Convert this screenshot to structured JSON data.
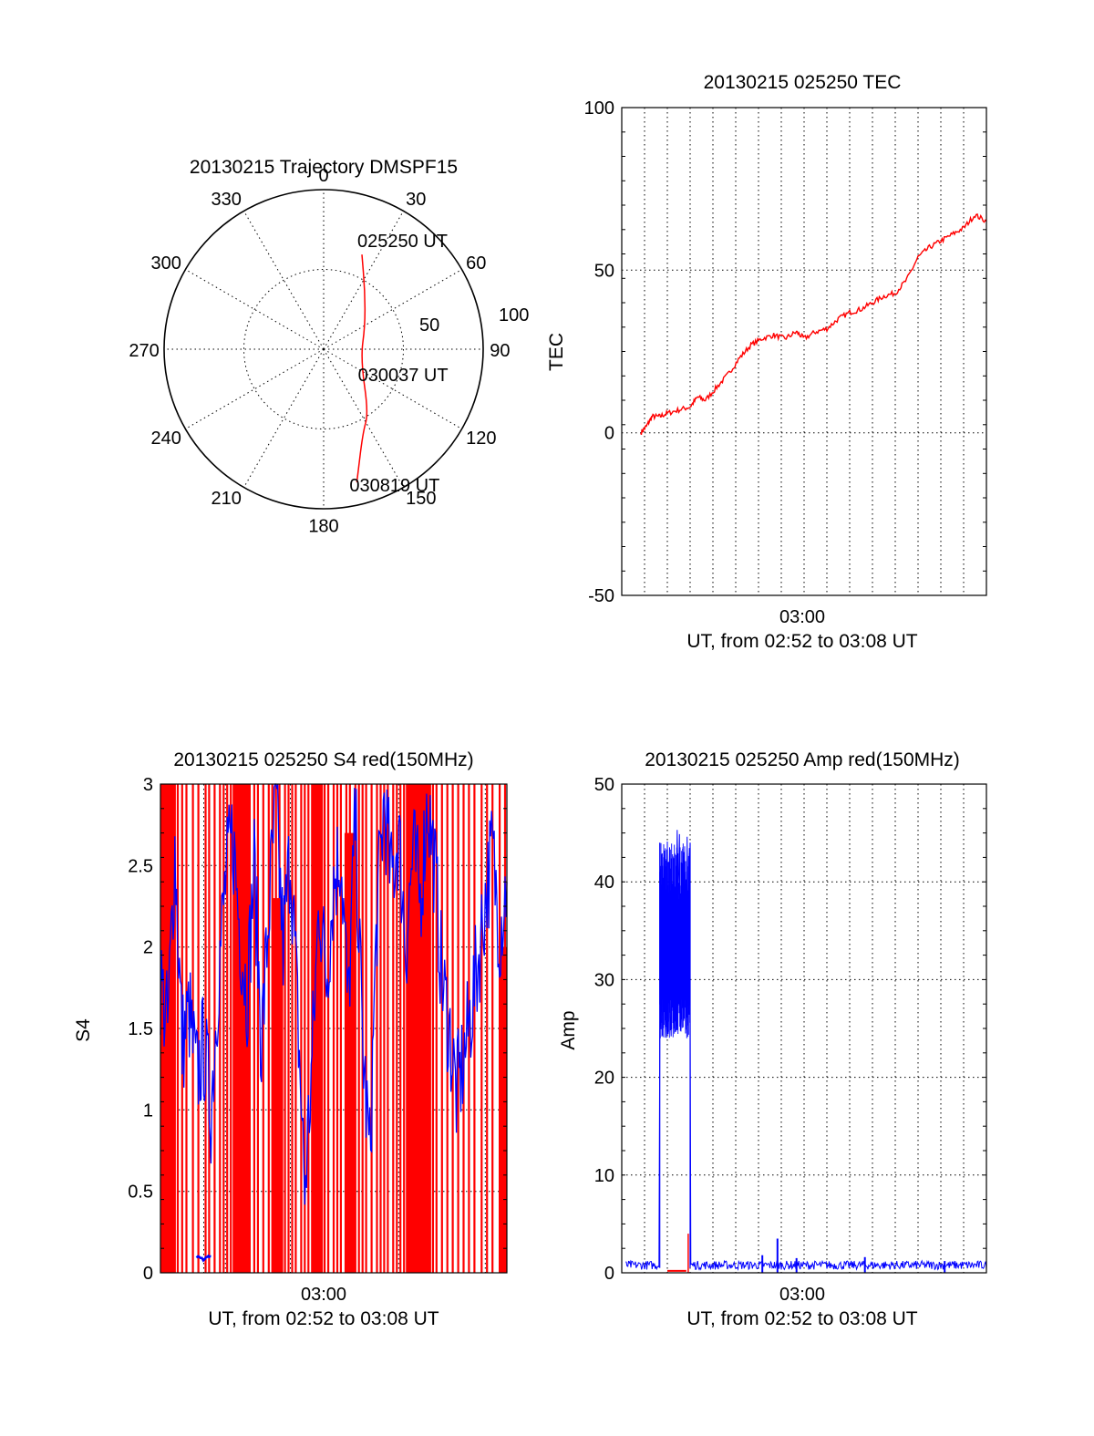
{
  "colors": {
    "red_series": "#ff0000",
    "blue_series": "#0000ff",
    "axes": "#000000"
  },
  "chart_data": [
    {
      "id": "trajectory",
      "type": "polar",
      "title": "20130215 Trajectory DMSPF15",
      "azimuth_ticks": [
        0,
        30,
        60,
        90,
        120,
        150,
        180,
        210,
        240,
        270,
        300,
        330
      ],
      "radial_ticks": [
        50,
        100
      ],
      "r_range": [
        0,
        100
      ],
      "grid": true,
      "track": {
        "color": "#ff0000",
        "points": [
          {
            "az": 22,
            "r": 64
          },
          {
            "az": 35,
            "r": 45
          },
          {
            "az": 60,
            "r": 30
          },
          {
            "az": 105,
            "r": 24
          },
          {
            "az": 145,
            "r": 49
          },
          {
            "az": 155,
            "r": 58
          },
          {
            "az": 166,
            "r": 86
          }
        ]
      },
      "annotations": [
        {
          "text": "025250 UT",
          "az": 22,
          "r": 64
        },
        {
          "text": "030037 UT",
          "az": 105,
          "r": 24
        },
        {
          "text": "030819 UT",
          "az": 166,
          "r": 86
        }
      ]
    },
    {
      "id": "tec",
      "type": "line",
      "title": "20130215 025250 TEC",
      "ylabel": "TEC",
      "xlabel": "UT, from 02:52 to 03:08 UT",
      "x_range": [
        "02:52:00",
        "03:08:00"
      ],
      "x_tick_labels": [
        {
          "time": "03:00:00",
          "label": "03:00"
        }
      ],
      "ylim": [
        -50,
        100
      ],
      "y_ticks": [
        -50,
        0,
        50,
        100
      ],
      "grid": true,
      "series": [
        {
          "color": "#ff0000",
          "points": [
            [
              "02:52:50",
              0
            ],
            [
              "02:53:05",
              2
            ],
            [
              "02:53:20",
              5
            ],
            [
              "02:53:40",
              5
            ],
            [
              "02:54:00",
              6
            ],
            [
              "02:54:30",
              7
            ],
            [
              "02:55:00",
              8
            ],
            [
              "02:55:20",
              11
            ],
            [
              "02:55:40",
              10
            ],
            [
              "02:56:10",
              14
            ],
            [
              "02:56:40",
              18
            ],
            [
              "02:57:10",
              23
            ],
            [
              "02:57:40",
              27
            ],
            [
              "02:58:10",
              29
            ],
            [
              "02:58:40",
              30
            ],
            [
              "02:59:10",
              29
            ],
            [
              "02:59:40",
              31
            ],
            [
              "03:00:00",
              29
            ],
            [
              "03:00:30",
              31
            ],
            [
              "03:01:00",
              32
            ],
            [
              "03:01:30",
              35
            ],
            [
              "03:02:00",
              37
            ],
            [
              "03:02:30",
              38
            ],
            [
              "03:03:00",
              40
            ],
            [
              "03:03:30",
              42
            ],
            [
              "03:04:00",
              43
            ],
            [
              "03:04:30",
              47
            ],
            [
              "03:05:00",
              54
            ],
            [
              "03:05:30",
              57
            ],
            [
              "03:06:00",
              59
            ],
            [
              "03:06:30",
              61
            ],
            [
              "03:07:00",
              63
            ],
            [
              "03:07:30",
              67
            ],
            [
              "03:08:00",
              65
            ]
          ]
        }
      ]
    },
    {
      "id": "s4",
      "type": "line",
      "title": "20130215 025250 S4 red(150MHz)",
      "ylabel": "S4",
      "xlabel": "UT, from 02:52 to 03:08 UT",
      "x_range": [
        "02:52:00",
        "03:08:00"
      ],
      "x_tick_labels": [
        {
          "time": "03:00:00",
          "label": "03:00"
        }
      ],
      "ylim": [
        0,
        3
      ],
      "y_ticks": [
        0,
        0.5,
        1,
        1.5,
        2,
        2.5,
        3
      ],
      "grid": true,
      "series": [
        {
          "color": "#0000ff",
          "points": [
            [
              "02:52:00",
              1.8
            ],
            [
              "02:52:20",
              1.5
            ],
            [
              "02:52:40",
              2.6
            ],
            [
              "02:53:00",
              1.4
            ],
            [
              "02:53:20",
              1.6
            ],
            [
              "02:53:40",
              1.2
            ],
            [
              "02:54:00",
              1.4
            ],
            [
              "02:54:20",
              1.0
            ],
            [
              "02:54:40",
              1.8
            ],
            [
              "02:55:00",
              2.4
            ],
            [
              "02:55:20",
              2.7
            ],
            [
              "02:55:40",
              2.1
            ],
            [
              "02:56:00",
              1.7
            ],
            [
              "02:56:20",
              2.5
            ],
            [
              "02:56:40",
              1.4
            ],
            [
              "02:57:00",
              2.2
            ],
            [
              "02:57:20",
              2.9
            ],
            [
              "02:57:40",
              2.0
            ],
            [
              "02:58:00",
              2.6
            ],
            [
              "02:58:20",
              1.6
            ],
            [
              "02:58:40",
              0.5
            ],
            [
              "02:59:00",
              1.3
            ],
            [
              "02:59:20",
              2.3
            ],
            [
              "02:59:40",
              1.8
            ],
            [
              "03:00:00",
              2.4
            ],
            [
              "03:00:20",
              2.6
            ],
            [
              "03:00:40",
              1.6
            ],
            [
              "03:01:00",
              2.8
            ],
            [
              "03:01:20",
              1.4
            ],
            [
              "03:01:40",
              0.7
            ],
            [
              "03:02:00",
              2.2
            ],
            [
              "03:02:20",
              2.9
            ],
            [
              "03:02:40",
              2.4
            ],
            [
              "03:03:00",
              2.7
            ],
            [
              "03:03:20",
              2.0
            ],
            [
              "03:03:40",
              2.6
            ],
            [
              "03:04:00",
              2.3
            ],
            [
              "03:04:20",
              2.9
            ],
            [
              "03:04:40",
              2.5
            ],
            [
              "03:05:00",
              1.8
            ],
            [
              "03:05:20",
              1.5
            ],
            [
              "03:05:40",
              1.1
            ],
            [
              "03:06:00",
              1.3
            ],
            [
              "03:06:20",
              1.6
            ],
            [
              "03:06:40",
              1.9
            ],
            [
              "03:07:00",
              2.3
            ],
            [
              "03:07:20",
              2.6
            ],
            [
              "03:07:40",
              2.1
            ],
            [
              "03:08:00",
              2.4
            ]
          ]
        },
        {
          "color": "#0000ff",
          "points": [
            [
              "02:53:40",
              0.1
            ],
            [
              "02:53:55",
              0.08
            ],
            [
              "02:54:10",
              0.1
            ],
            [
              "02:54:20",
              0.1
            ]
          ]
        }
      ],
      "red_spikes": {
        "color": "#ff0000",
        "top": 3,
        "times": [
          "02:52:02",
          "02:52:08",
          "02:52:14",
          "02:52:20",
          "02:52:27",
          "02:52:33",
          "02:52:40",
          "02:52:48",
          "02:53:00",
          "02:53:12",
          "02:53:30",
          "02:53:45",
          "02:54:05",
          "02:54:15",
          "02:54:30",
          "02:54:45",
          "02:54:55",
          "02:55:05",
          "02:55:15",
          "02:55:25",
          "02:55:35",
          "02:55:45",
          "02:55:55",
          "02:56:05",
          "02:56:20",
          "02:56:30",
          "02:56:45",
          "02:57:00",
          "02:57:10",
          "02:57:20",
          "02:57:30",
          "02:57:45",
          "02:57:55",
          "02:58:05",
          "02:58:15",
          "02:58:30",
          "02:58:40",
          "02:58:50",
          "02:59:00",
          "02:59:10",
          "02:59:20",
          "02:59:35",
          "02:59:45",
          "03:00:00",
          "03:00:10",
          "03:00:20",
          "03:00:35",
          "03:00:45",
          "03:01:00",
          "03:01:10",
          "03:01:20",
          "03:01:30",
          "03:01:45",
          "03:02:00",
          "03:02:10",
          "03:02:20",
          "03:02:30",
          "03:02:45",
          "03:02:55",
          "03:03:05",
          "03:03:15",
          "03:03:25",
          "03:03:40",
          "03:03:50",
          "03:04:00",
          "03:04:10",
          "03:04:20",
          "03:04:35",
          "03:04:45",
          "03:05:00",
          "03:05:15",
          "03:05:30",
          "03:05:45",
          "03:06:00",
          "03:06:15",
          "03:06:30",
          "03:06:50",
          "03:07:05",
          "03:07:20",
          "03:07:40",
          "03:07:55"
        ],
        "bands": [
          [
            "02:52:00",
            "02:52:40",
            3
          ],
          [
            "02:55:20",
            "02:56:10",
            3
          ],
          [
            "02:57:10",
            "02:57:40",
            2.3
          ],
          [
            "02:59:00",
            "02:59:30",
            3
          ],
          [
            "03:00:30",
            "03:01:00",
            2.7
          ],
          [
            "03:03:20",
            "03:04:30",
            3
          ],
          [
            "03:07:40",
            "03:08:00",
            2.0
          ]
        ]
      }
    },
    {
      "id": "amp",
      "type": "line",
      "title": "20130215 025250 Amp red(150MHz)",
      "ylabel": "Amp",
      "xlabel": "UT, from 02:52 to 03:08 UT",
      "x_range": [
        "02:52:00",
        "03:08:00"
      ],
      "x_tick_labels": [
        {
          "time": "03:00:00",
          "label": "03:00"
        }
      ],
      "ylim": [
        0,
        50
      ],
      "y_ticks": [
        0,
        10,
        20,
        30,
        40,
        50
      ],
      "grid": true,
      "series": [
        {
          "color": "#0000ff",
          "baseline": 0.6,
          "burst": {
            "start": "02:53:40",
            "end": "02:55:00",
            "low": 24,
            "high": 44,
            "peak": 46
          },
          "spikes": [
            {
              "time": "02:58:10",
              "value": 1.8
            },
            {
              "time": "02:58:50",
              "value": 3.5
            },
            {
              "time": "02:59:40",
              "value": 1.5
            },
            {
              "time": "03:02:40",
              "value": 1.6
            },
            {
              "time": "03:06:10",
              "value": 1.2
            }
          ]
        },
        {
          "color": "#ff0000",
          "segments": [
            {
              "start": "02:54:00",
              "end": "02:54:50",
              "value": 0.2
            },
            {
              "time": "02:54:55",
              "value": 4.0
            }
          ]
        }
      ]
    }
  ]
}
